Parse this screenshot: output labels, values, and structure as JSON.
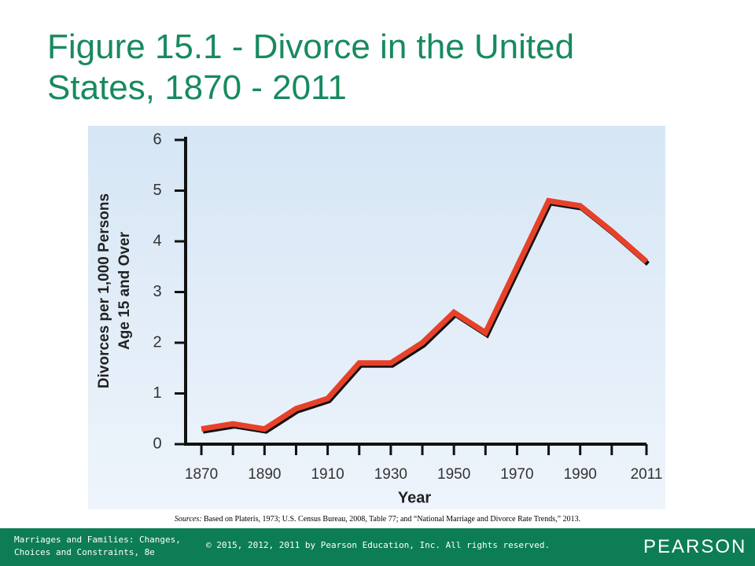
{
  "title": [
    "Figure 15.1 - Divorce in the United",
    "States, 1870 - 2011"
  ],
  "chart_data": {
    "type": "line",
    "x": [
      1870,
      1880,
      1890,
      1900,
      1910,
      1920,
      1930,
      1940,
      1950,
      1960,
      1970,
      1980,
      1990,
      2000,
      2011
    ],
    "values": [
      0.3,
      0.4,
      0.3,
      0.7,
      0.9,
      1.6,
      1.6,
      2.0,
      2.6,
      2.2,
      3.5,
      4.8,
      4.7,
      4.2,
      3.6
    ],
    "color": "#e8412a",
    "xlim": [
      1865,
      2011
    ],
    "ylim": [
      0,
      6
    ],
    "xticks": [
      1870,
      1890,
      1910,
      1930,
      1950,
      1970,
      1990,
      2011
    ],
    "yticks": [
      0,
      1,
      2,
      3,
      4,
      5,
      6
    ],
    "xlabel": "Year",
    "ylabel": [
      "Divorces per 1,000 Persons",
      "Age 15 and Over"
    ]
  },
  "source": {
    "label": "Sources:",
    "text": "Based on Plateris, 1973; U.S. Census Bureau, 2008, Table 77; and “National Marriage and Divorce Rate Trends,” 2013."
  },
  "footer": {
    "book": [
      "Marriages and Families: Changes,",
      "Choices and Constraints, 8e"
    ],
    "copyright": "© 2015, 2012, 2011 by Pearson Education, Inc. All rights reserved.",
    "publisher": "PEARSON"
  }
}
